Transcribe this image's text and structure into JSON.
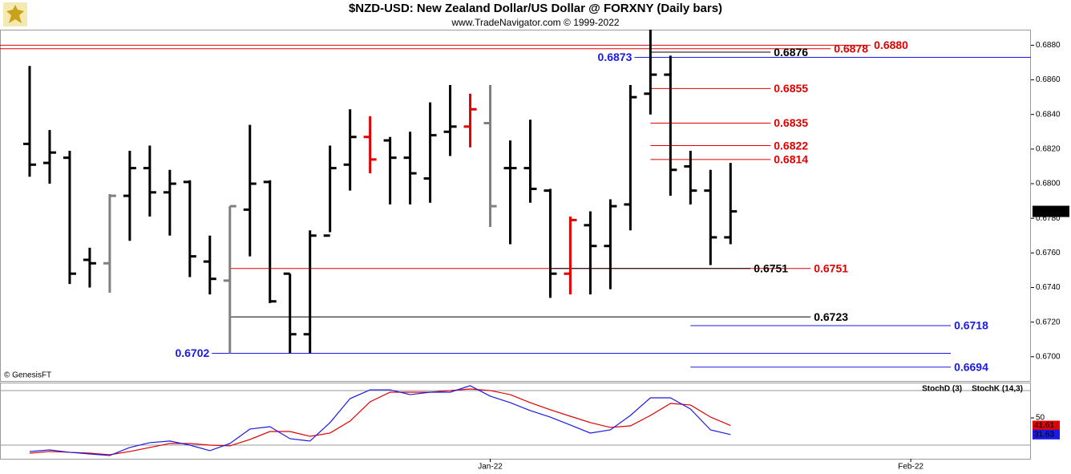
{
  "chart_data": [
    {
      "type": "ohlc",
      "title": "$NZD-USD:  New Zealand Dollar/US Dollar @ FORXNY  (Daily bars)",
      "subtitle": "www.TradeNavigator.com © 1999-2022",
      "watermark": "© GenesisFT",
      "x": [
        0,
        1,
        2,
        3,
        4,
        5,
        6,
        7,
        8,
        9,
        10,
        11,
        12,
        13,
        14,
        15,
        16,
        17,
        18,
        19,
        20,
        21,
        22,
        23,
        24,
        25,
        26,
        27,
        28,
        29,
        30,
        31,
        32,
        33,
        34,
        35
      ],
      "open": [
        0.6823,
        0.6812,
        0.6815,
        0.6756,
        0.6754,
        0.6793,
        0.6809,
        0.6795,
        0.6801,
        0.6755,
        0.6744,
        0.6785,
        0.6801,
        0.6748,
        0.6713,
        0.677,
        0.6811,
        0.6827,
        0.6825,
        0.6815,
        0.6803,
        0.683,
        0.6833,
        0.6835,
        0.6809,
        0.6809,
        0.6796,
        0.6748,
        0.6776,
        0.6764,
        0.6788,
        0.6852,
        0.6863,
        0.681,
        0.6796,
        0.6769
      ],
      "high": [
        0.6868,
        0.6831,
        0.6819,
        0.6763,
        0.6794,
        0.6819,
        0.6822,
        0.6808,
        0.6802,
        0.677,
        0.6787,
        0.6834,
        0.6802,
        0.6748,
        0.6773,
        0.6822,
        0.6843,
        0.6839,
        0.6827,
        0.683,
        0.6847,
        0.6857,
        0.6852,
        0.6857,
        0.6825,
        0.6837,
        0.6797,
        0.6781,
        0.6784,
        0.6791,
        0.6857,
        0.6889,
        0.6874,
        0.6819,
        0.6808,
        0.6812
      ],
      "low": [
        0.6804,
        0.68,
        0.6742,
        0.674,
        0.6737,
        0.6767,
        0.6781,
        0.677,
        0.6746,
        0.6736,
        0.6702,
        0.6758,
        0.6731,
        0.6702,
        0.6702,
        0.6772,
        0.6796,
        0.6806,
        0.6788,
        0.6788,
        0.6789,
        0.6816,
        0.6821,
        0.6775,
        0.6765,
        0.6789,
        0.6734,
        0.6736,
        0.6736,
        0.6739,
        0.6773,
        0.684,
        0.6793,
        0.6788,
        0.6753,
        0.6765
      ],
      "close": [
        0.6811,
        0.6818,
        0.6748,
        0.6754,
        0.6793,
        0.6809,
        0.6795,
        0.68,
        0.6758,
        0.6745,
        0.6787,
        0.68,
        0.6732,
        0.6713,
        0.677,
        0.6809,
        0.6827,
        0.6814,
        0.6815,
        0.6806,
        0.6828,
        0.6833,
        0.6843,
        0.6787,
        0.6809,
        0.6797,
        0.6748,
        0.6779,
        0.6764,
        0.6787,
        0.685,
        0.6863,
        0.6808,
        0.6796,
        0.6769,
        0.6784
      ],
      "colors": [
        "#000",
        "#000",
        "#000",
        "#000",
        "#808080",
        "#000",
        "#000",
        "#000",
        "#000",
        "#000",
        "#808080",
        "#000",
        "#000",
        "#000",
        "#000",
        "#000",
        "#000",
        "#e00000",
        "#000",
        "#000",
        "#000",
        "#000",
        "#e00000",
        "#808080",
        "#000",
        "#000",
        "#000",
        "#e00000",
        "#000",
        "#000",
        "#000",
        "#000",
        "#000",
        "#000",
        "#000",
        "#000"
      ],
      "xlim": [
        -1.48,
        50.0
      ],
      "ylim": [
        0.6686,
        0.6889
      ],
      "yticks": [
        {
          "value": 0.67,
          "label": "0.6700"
        },
        {
          "value": 0.672,
          "label": "0.6720"
        },
        {
          "value": 0.674,
          "label": "0.6740"
        },
        {
          "value": 0.676,
          "label": "0.6760"
        },
        {
          "value": 0.678,
          "label": "0.6780"
        },
        {
          "value": 0.68,
          "label": "0.6800"
        },
        {
          "value": 0.682,
          "label": "0.6820"
        },
        {
          "value": 0.684,
          "label": "0.6840"
        },
        {
          "value": 0.686,
          "label": "0.6860"
        },
        {
          "value": 0.688,
          "label": "0.6880"
        }
      ],
      "last_price": 0.6784,
      "levels": [
        {
          "value": 0.688,
          "label": "0.6880",
          "color": "#e00000",
          "from": -1.48,
          "to": 42.0,
          "side": "right"
        },
        {
          "value": 0.6878,
          "label": "0.6878",
          "color": "#e00000",
          "from": -1.48,
          "to": 40.0,
          "side": "right"
        },
        {
          "value": 0.6876,
          "label": "0.6876",
          "color": "#000000",
          "from": 31.0,
          "to": 37.0,
          "side": "right"
        },
        {
          "value": 0.6873,
          "label": "0.6873",
          "color": "#1a1ae6",
          "from": 30.2,
          "to": 50.0,
          "side": "left"
        },
        {
          "value": 0.6855,
          "label": "0.6855",
          "color": "#e00000",
          "from": 31.0,
          "to": 37.0,
          "side": "right"
        },
        {
          "value": 0.6835,
          "label": "0.6835",
          "color": "#e00000",
          "from": 31.0,
          "to": 37.0,
          "side": "right"
        },
        {
          "value": 0.6822,
          "label": "0.6822",
          "color": "#e00000",
          "from": 31.0,
          "to": 37.0,
          "side": "right"
        },
        {
          "value": 0.6814,
          "label": "0.6814",
          "color": "#e00000",
          "from": 31.0,
          "to": 37.0,
          "side": "right"
        },
        {
          "value": 0.6751,
          "label": "0.6751",
          "color": "#e00000",
          "from": 10.0,
          "to": 39.0,
          "side": "right"
        },
        {
          "value": 0.6751,
          "label": "0.6751",
          "color": "#000000",
          "from": 26.0,
          "to": 36.0,
          "side": "right"
        },
        {
          "value": 0.6723,
          "label": "0.6723",
          "color": "#000000",
          "from": 10.0,
          "to": 39.0,
          "side": "right"
        },
        {
          "value": 0.6718,
          "label": "0.6718",
          "color": "#1a1ae6",
          "from": 33.0,
          "to": 46.0,
          "side": "right"
        },
        {
          "value": 0.6702,
          "label": "0.6702",
          "color": "#1a1ae6",
          "from": 9.1,
          "to": 46.0,
          "side": "left"
        },
        {
          "value": 0.6694,
          "label": "0.6694",
          "color": "#1a1ae6",
          "from": 33.0,
          "to": 46.0,
          "side": "right"
        }
      ]
    },
    {
      "type": "line",
      "x": [
        0,
        1,
        2,
        3,
        4,
        5,
        6,
        7,
        8,
        9,
        10,
        11,
        12,
        13,
        14,
        15,
        16,
        17,
        18,
        19,
        20,
        21,
        22,
        23,
        24,
        25,
        26,
        27,
        28,
        29,
        30,
        31,
        32,
        33,
        34,
        35
      ],
      "xlim": [
        -1.48,
        50.0
      ],
      "xticks": [
        {
          "value": 23,
          "label": "Jan-22"
        },
        {
          "value": 44,
          "label": "Feb-22"
        }
      ],
      "ylim": [
        5,
        88
      ],
      "yticks": [
        50
      ],
      "hlines": [
        80,
        20
      ],
      "series": [
        {
          "name": "StochD (3)",
          "color": "#e00000",
          "values": [
            11.2,
            13.0,
            12.1,
            11.2,
            9.4,
            13.0,
            17.4,
            21.8,
            21.8,
            20.0,
            19.2,
            26.2,
            35.0,
            35.0,
            29.7,
            33.3,
            46.5,
            67.7,
            78.3,
            78.3,
            78.3,
            80.1,
            81.8,
            80.1,
            75.6,
            66.8,
            58.9,
            51.8,
            44.8,
            39.5,
            41.2,
            52.7,
            65.9,
            64.2,
            50.9,
            41.61
          ]
        },
        {
          "name": "StochK (14,3)",
          "color": "#1a1ae6",
          "values": [
            13.0,
            14.7,
            12.1,
            10.3,
            8.6,
            17.4,
            22.7,
            24.5,
            20.0,
            13.9,
            21.8,
            37.7,
            40.3,
            27.1,
            24.5,
            44.8,
            71.2,
            80.9,
            80.9,
            75.6,
            78.3,
            78.3,
            85.4,
            73.9,
            66.8,
            58.0,
            50.9,
            42.1,
            33.3,
            36.8,
            52.7,
            72.1,
            72.1,
            59.8,
            36.8,
            31.63
          ]
        }
      ]
    }
  ]
}
